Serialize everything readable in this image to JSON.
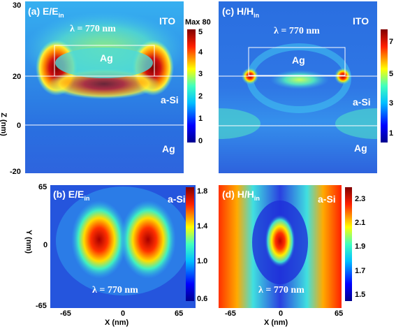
{
  "panels": {
    "a": {
      "label": "(a) E/E",
      "sub": "in",
      "lambda": "λ = 770 nm",
      "materials": {
        "top": "ITO",
        "particle": "Ag",
        "mid": "a-Si",
        "bottom": "Ag"
      }
    },
    "b": {
      "label": "(b) E/E",
      "sub": "in",
      "lambda": "λ = 770 nm",
      "material": "a-Si"
    },
    "c": {
      "label": "(c) H/H",
      "sub": "in",
      "lambda": "λ = 770 nm",
      "materials": {
        "top": "ITO",
        "particle": "Ag",
        "mid": "a-Si",
        "bottom": "Ag"
      }
    },
    "d": {
      "label": "(d) H/H",
      "sub": "in",
      "lambda": "λ = 770 nm",
      "material": "a-Si"
    }
  },
  "colorbars": {
    "a": {
      "max_label": "Max 80",
      "ticks": [
        "5",
        "4",
        "3",
        "2",
        "1",
        "0"
      ]
    },
    "b": {
      "ticks": [
        "1.8",
        "1.4",
        "1.0",
        "0.6"
      ]
    },
    "c": {
      "ticks": [
        "7",
        "5",
        "3",
        "1"
      ]
    },
    "d": {
      "ticks": [
        "2.3",
        "2.1",
        "1.9",
        "1.7",
        "1.5"
      ]
    }
  },
  "axes": {
    "z_label": "Z (nm)",
    "z_ticks": [
      "30",
      "20",
      "0",
      "-20"
    ],
    "y_label": "Y (nm)",
    "y_ticks": [
      "65",
      "0",
      "-65"
    ],
    "x_label": "X (nm)",
    "x_ticks": [
      "-65",
      "0",
      "65"
    ]
  }
}
